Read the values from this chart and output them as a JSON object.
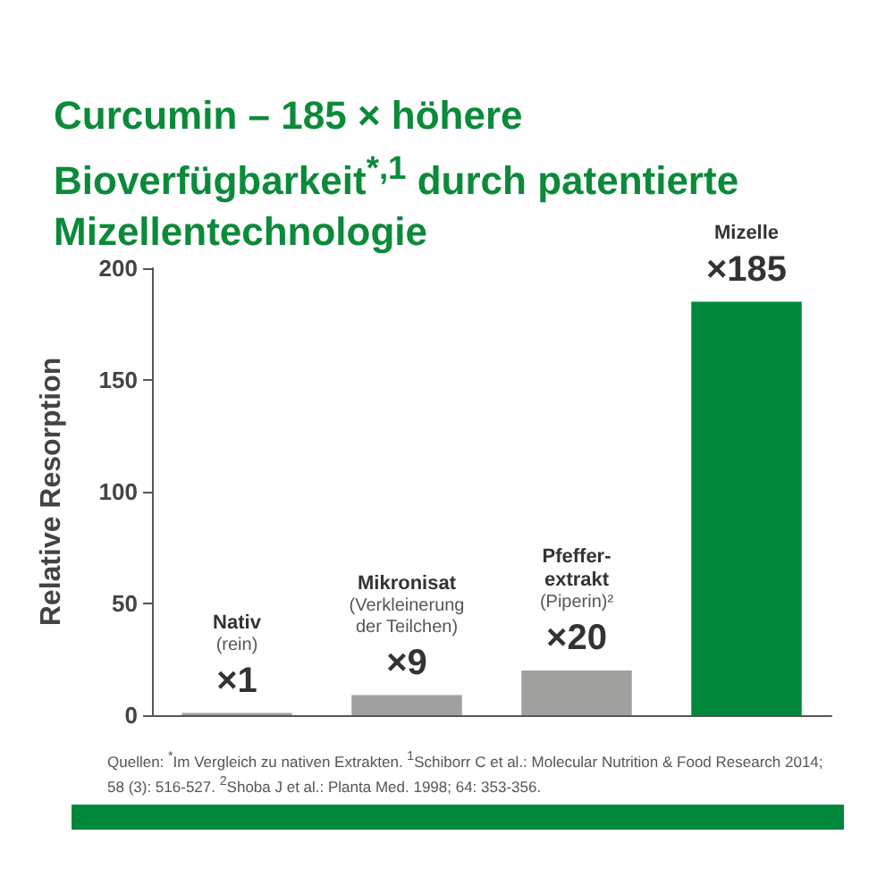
{
  "chart_data": {
    "type": "bar",
    "title": "Curcumin – 185 × höhere Bioverfügbarkeit$^{*,1}$ durch patentierte Mizellentechnologie",
    "ylabel": "Relative Resorption",
    "categories": [
      "Nativ\n(rein)",
      "Mikronisat\n(Verkleinerung\nder Teilchen)",
      "Pfeffer-\nextrakt\n(Piperin)²",
      "Mizelle"
    ],
    "values": [
      1,
      9,
      20,
      185
    ],
    "value_labels": [
      "×1",
      "×9",
      "×20",
      "×185"
    ],
    "colors": [
      "#a0a09e",
      "#a0a09e",
      "#a0a09e",
      "#00873a"
    ],
    "ylim": [
      0,
      200
    ],
    "yticks": [
      0,
      50,
      100,
      150,
      200
    ],
    "grid": false,
    "tick_labels": "y",
    "annotations": [
      "Quellen: $^{*}$Im Vergleich zu nativen Extrakten. $^{1}$Schiborr C et al.: Molecular Nutrition & Food Research 2014; 58 (3): 516-527. $^{2}$Shoba J et al.: Planta Med. 1998; 64: 353-356."
    ]
  }
}
